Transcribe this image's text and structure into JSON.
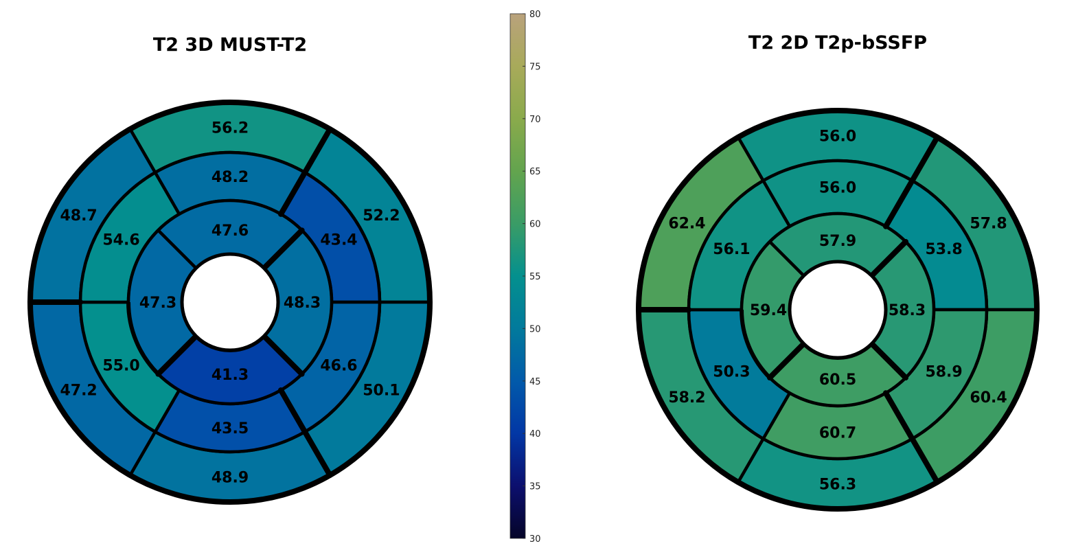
{
  "chart_data": [
    {
      "type": "heatmap",
      "subtype": "bullseye-17-segment",
      "title": "T2 3D MUST-T2",
      "rings": [
        {
          "ring": "basal",
          "values": [
            56.2,
            52.2,
            50.1,
            48.9,
            47.2,
            48.7
          ]
        },
        {
          "ring": "mid",
          "values": [
            48.2,
            43.4,
            46.6,
            43.5,
            55.0,
            54.6
          ]
        },
        {
          "ring": "apical",
          "values": [
            47.6,
            48.3,
            41.3,
            47.3
          ]
        }
      ]
    },
    {
      "type": "heatmap",
      "subtype": "bullseye-17-segment",
      "title": "T2 2D T2p-bSSFP",
      "rings": [
        {
          "ring": "basal",
          "values": [
            56.0,
            57.8,
            60.4,
            56.3,
            58.2,
            62.4
          ]
        },
        {
          "ring": "mid",
          "values": [
            56.0,
            53.8,
            58.9,
            60.7,
            50.3,
            56.1
          ]
        },
        {
          "ring": "apical",
          "values": [
            57.9,
            58.3,
            60.5,
            59.4
          ]
        }
      ]
    }
  ],
  "colorbar": {
    "range": [
      30,
      80
    ],
    "ticks": [
      "30",
      "35",
      "40",
      "45",
      "50",
      "55",
      "60",
      "65",
      "70",
      "75",
      "80"
    ],
    "colormap_stops": [
      {
        "v": 30,
        "c": "#050528"
      },
      {
        "v": 35,
        "c": "#0c0f6e"
      },
      {
        "v": 40,
        "c": "#0237a5"
      },
      {
        "v": 45,
        "c": "#025aaa"
      },
      {
        "v": 50,
        "c": "#027a9c"
      },
      {
        "v": 55,
        "c": "#04908e"
      },
      {
        "v": 60,
        "c": "#3a9c66"
      },
      {
        "v": 65,
        "c": "#63a44e"
      },
      {
        "v": 70,
        "c": "#8aaa4c"
      },
      {
        "v": 75,
        "c": "#a8aa5a"
      },
      {
        "v": 80,
        "c": "#b9a27c"
      }
    ]
  }
}
